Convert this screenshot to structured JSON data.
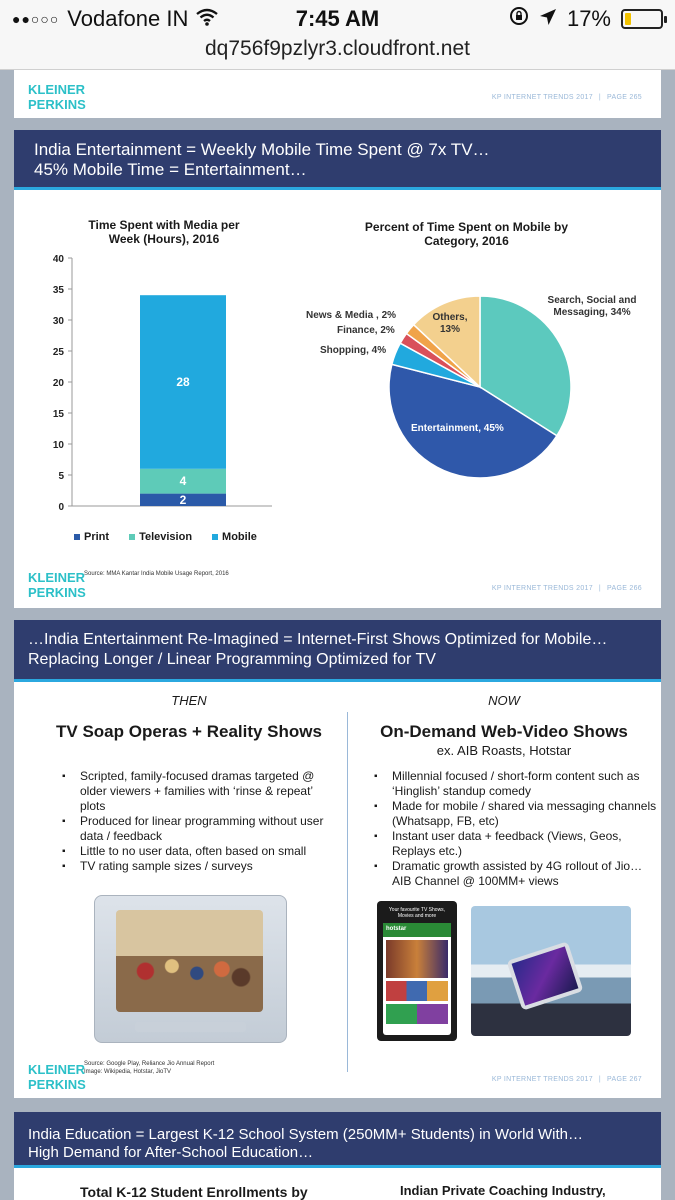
{
  "status_bar": {
    "signal_dots": "●●○○○",
    "carrier": "Vodafone IN",
    "wifi_icon": "wifi-icon",
    "time": "7:45 AM",
    "battery_percent": "17%",
    "battery_level": 0.17
  },
  "browser": {
    "url": "dq756f9pzlyr3.cloudfront.net"
  },
  "logo": {
    "line1": "KLEINER",
    "line2": "PERKINS"
  },
  "slide_top": {
    "footer": {
      "name": "KP INTERNET TRENDS 2017",
      "sep": "|",
      "page": "PAGE 265"
    }
  },
  "slide1": {
    "title_line1": "India Entertainment = Weekly Mobile Time Spent @ 7x TV…",
    "title_line2": "45% Mobile Time = Entertainment…",
    "source": "Source: MMA Kantar India Mobile Usage Report, 2016",
    "footer": {
      "name": "KP INTERNET TRENDS 2017",
      "sep": "|",
      "page": "PAGE 266"
    }
  },
  "slide2": {
    "title_line1": "…India Entertainment Re-Imagined = Internet-First Shows Optimized for Mobile…",
    "title_line2": "Replacing Longer / Linear Programming Optimized for TV",
    "then": {
      "label": "THEN",
      "title": "TV Soap Operas + Reality Shows",
      "bullets": [
        "Scripted, family-focused dramas targeted @ older viewers + families with ‘rinse & repeat’ plots",
        "Produced for linear programming without user data / feedback",
        "Little to no user data, often based on small",
        "TV rating sample sizes / surveys"
      ]
    },
    "now": {
      "label": "NOW",
      "title": "On-Demand Web-Video Shows",
      "subtitle": "ex. AIB Roasts, Hotstar",
      "bullets": [
        "Millennial focused / short-form content such as ‘Hinglish’ standup comedy",
        "Made for mobile / shared via messaging channels (Whatsapp, FB, etc)",
        "Instant user data + feedback (Views, Geos, Replays etc.)",
        "Dramatic growth assisted by 4G rollout of Jio…AIB Channel @ 100MM+ views"
      ]
    },
    "phone_screen_text": "Your favourite TV Shows, Movies and more",
    "phone_app_name": "hotstar",
    "source_line1": "Source: Google Play, Reliance Jio Annual Report",
    "source_line2": "Image: Wikipedia, Hotstar, JioTV",
    "footer": {
      "name": "KP INTERNET TRENDS 2017",
      "sep": "|",
      "page": "PAGE 267"
    }
  },
  "slide3": {
    "title_line1": "India Education = Largest K-12 School System (250MM+ Students) in World With…",
    "title_line2": "High Demand for After-School Education…",
    "left_subtitle": "Total K-12 Student Enrollments by",
    "right_subtitle": "Indian Private Coaching Industry,"
  },
  "chart_data": [
    {
      "type": "bar",
      "stacked": true,
      "title": "Time Spent with Media per Week (Hours), 2016",
      "categories": [
        ""
      ],
      "series": [
        {
          "name": "Print",
          "values": [
            2
          ],
          "color": "#2b5aa8"
        },
        {
          "name": "Television",
          "values": [
            4
          ],
          "color": "#5ecbb8"
        },
        {
          "name": "Mobile",
          "values": [
            28
          ],
          "color": "#21a9de"
        }
      ],
      "ylim": [
        0,
        40
      ],
      "yticks": [
        0,
        5,
        10,
        15,
        20,
        25,
        30,
        35,
        40
      ],
      "legend_position": "bottom"
    },
    {
      "type": "pie",
      "title": "Percent of Time Spent on Mobile by Category, 2016",
      "slices": [
        {
          "name": "Search, Social and Messaging",
          "label": "Search, Social and Messaging, 34%",
          "value": 34,
          "color": "#5cc9be"
        },
        {
          "name": "Entertainment",
          "label": "Entertainment, 45%",
          "value": 45,
          "color": "#2f58aa"
        },
        {
          "name": "Shopping",
          "label": "Shopping, 4%",
          "value": 4,
          "color": "#21a9de"
        },
        {
          "name": "Finance",
          "label": "Finance, 2%",
          "value": 2,
          "color": "#d9505a"
        },
        {
          "name": "News & Media",
          "label": "News & Media , 2%",
          "value": 2,
          "color": "#f0a349"
        },
        {
          "name": "Others",
          "label": "Others, 13%",
          "value": 13,
          "color": "#f3d08e"
        }
      ]
    }
  ]
}
